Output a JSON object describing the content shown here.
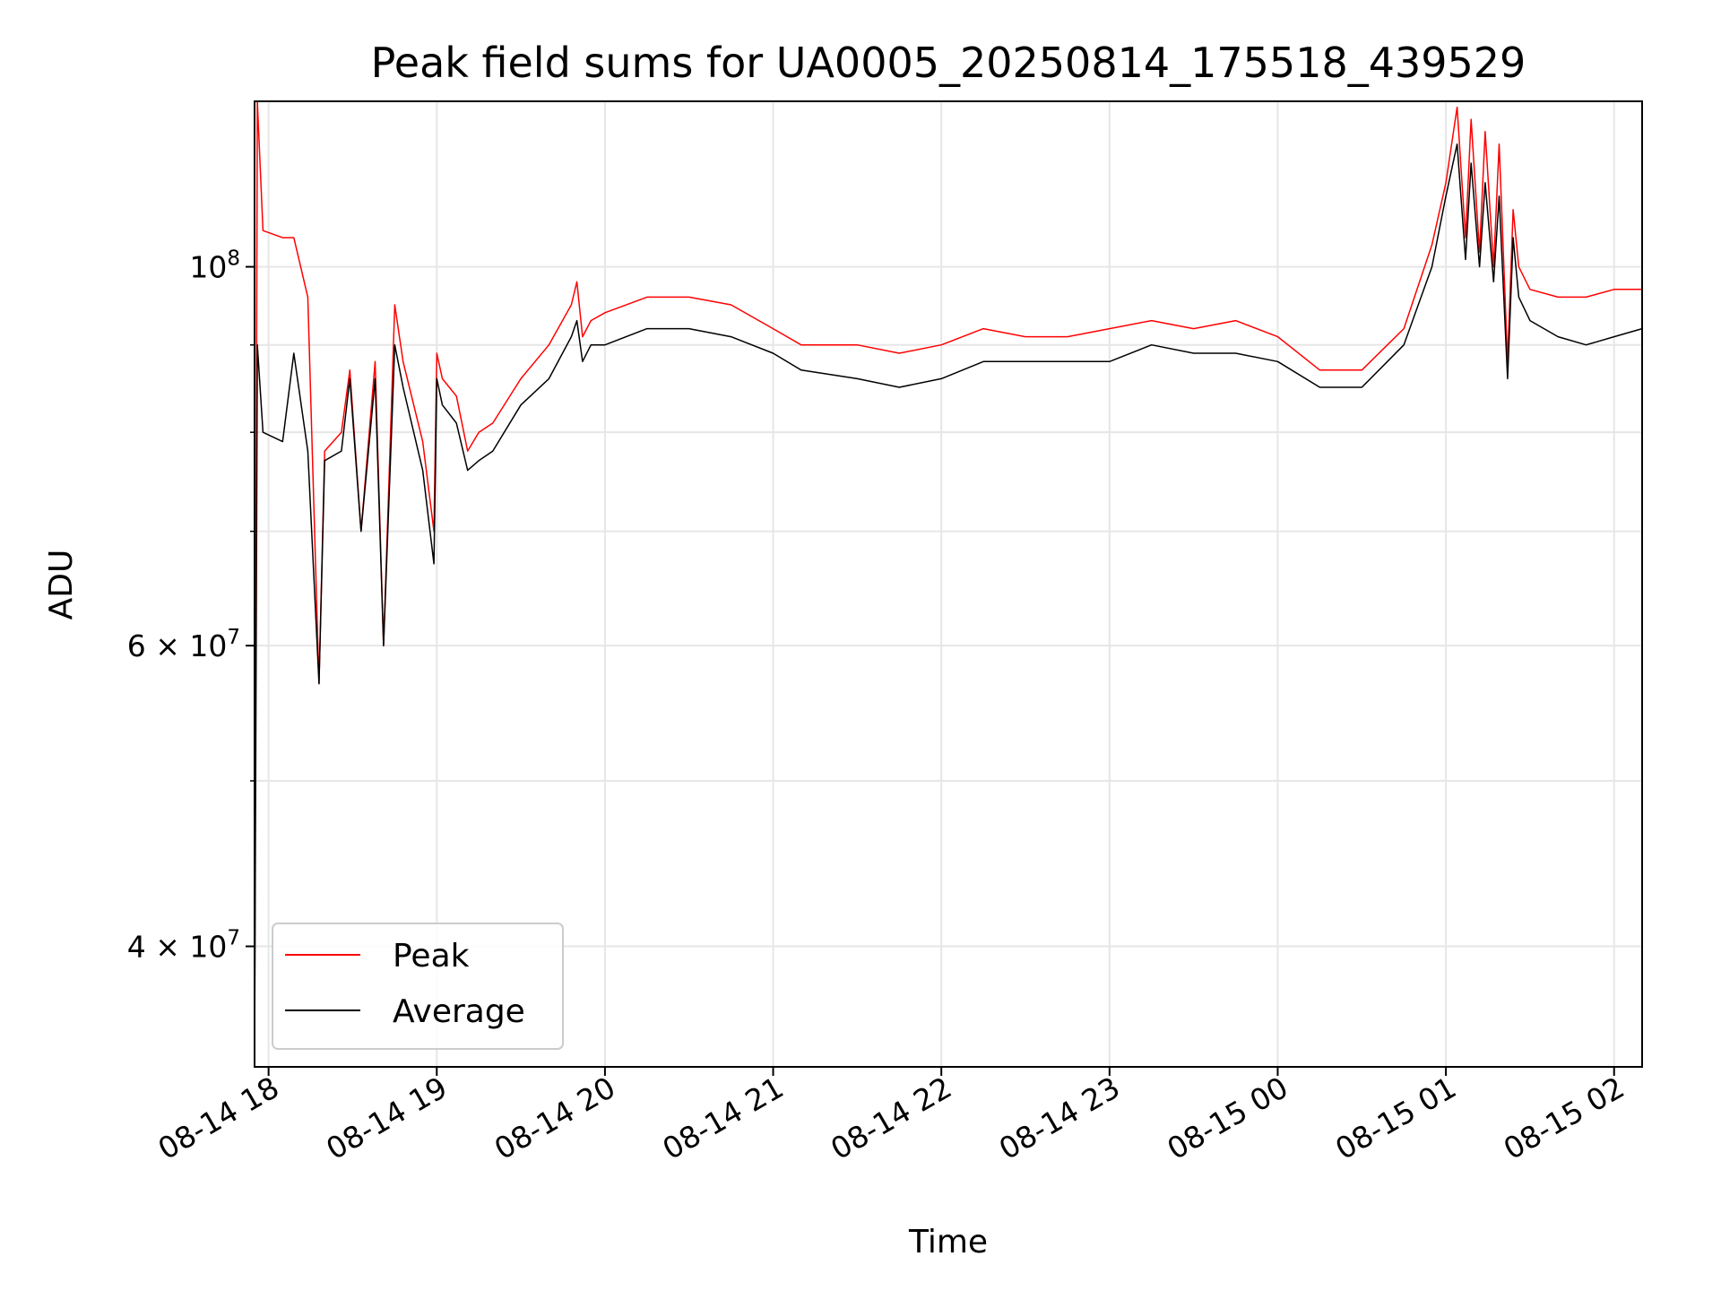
{
  "chart_data": {
    "type": "line",
    "title": "Peak field sums for UA0005_20250814_175518_439529",
    "xlabel": "Time",
    "ylabel": "ADU",
    "yscale": "log",
    "grid": true,
    "legend_placement": "lower-left",
    "xlim": [
      "2025-08-14 17:55",
      "2025-08-15 02:10"
    ],
    "ylim": [
      34000000,
      125000000
    ],
    "x_ticks": [
      {
        "value": "2025-08-14 18:00",
        "label": "08-14 18"
      },
      {
        "value": "2025-08-14 19:00",
        "label": "08-14 19"
      },
      {
        "value": "2025-08-14 20:00",
        "label": "08-14 20"
      },
      {
        "value": "2025-08-14 21:00",
        "label": "08-14 21"
      },
      {
        "value": "2025-08-14 22:00",
        "label": "08-14 22"
      },
      {
        "value": "2025-08-14 23:00",
        "label": "08-14 23"
      },
      {
        "value": "2025-08-15 00:00",
        "label": "08-15 00"
      },
      {
        "value": "2025-08-15 01:00",
        "label": "08-15 01"
      },
      {
        "value": "2025-08-15 02:00",
        "label": "08-15 02"
      }
    ],
    "y_ticks_major": [
      {
        "value": 40000000,
        "mantissa": "4",
        "base": "10",
        "exponent": "7",
        "times": "×"
      },
      {
        "value": 60000000,
        "mantissa": "6",
        "base": "10",
        "exponent": "7",
        "times": "×"
      },
      {
        "value": 100000000,
        "mantissa": "",
        "base": "10",
        "exponent": "8",
        "times": ""
      }
    ],
    "y_ticks_minor": [
      50000000,
      70000000,
      80000000,
      90000000
    ],
    "series": [
      {
        "name": "Peak",
        "color": "#ff0000",
        "x": [
          "2025-08-14 17:55",
          "2025-08-14 17:56",
          "2025-08-14 17:58",
          "2025-08-14 18:05",
          "2025-08-14 18:09",
          "2025-08-14 18:14",
          "2025-08-14 18:18",
          "2025-08-14 18:20",
          "2025-08-14 18:26",
          "2025-08-14 18:29",
          "2025-08-14 18:33",
          "2025-08-14 18:38",
          "2025-08-14 18:41",
          "2025-08-14 18:45",
          "2025-08-14 18:48",
          "2025-08-14 18:55",
          "2025-08-14 18:59",
          "2025-08-14 19:00",
          "2025-08-14 19:02",
          "2025-08-14 19:07",
          "2025-08-14 19:11",
          "2025-08-14 19:15",
          "2025-08-14 19:20",
          "2025-08-14 19:30",
          "2025-08-14 19:40",
          "2025-08-14 19:48",
          "2025-08-14 19:50",
          "2025-08-14 19:52",
          "2025-08-14 19:55",
          "2025-08-14 20:00",
          "2025-08-14 20:15",
          "2025-08-14 20:30",
          "2025-08-14 20:45",
          "2025-08-14 21:00",
          "2025-08-14 21:10",
          "2025-08-14 21:30",
          "2025-08-14 21:45",
          "2025-08-14 22:00",
          "2025-08-14 22:15",
          "2025-08-14 22:30",
          "2025-08-14 22:45",
          "2025-08-14 23:00",
          "2025-08-14 23:15",
          "2025-08-14 23:30",
          "2025-08-14 23:45",
          "2025-08-15 00:00",
          "2025-08-15 00:15",
          "2025-08-15 00:30",
          "2025-08-15 00:45",
          "2025-08-15 00:55",
          "2025-08-15 01:00",
          "2025-08-15 01:04",
          "2025-08-15 01:07",
          "2025-08-15 01:09",
          "2025-08-15 01:12",
          "2025-08-15 01:14",
          "2025-08-15 01:17",
          "2025-08-15 01:19",
          "2025-08-15 01:22",
          "2025-08-15 01:24",
          "2025-08-15 01:26",
          "2025-08-15 01:30",
          "2025-08-15 01:40",
          "2025-08-15 01:50",
          "2025-08-15 02:00",
          "2025-08-15 02:10"
        ],
        "y": [
          34000000,
          125000000,
          105000000,
          104000000,
          104000000,
          96000000,
          57000000,
          78000000,
          80000000,
          87000000,
          70000000,
          88000000,
          60000000,
          95000000,
          88000000,
          79000000,
          70000000,
          89000000,
          86000000,
          84000000,
          78000000,
          80000000,
          81000000,
          86000000,
          90000000,
          95000000,
          98000000,
          91000000,
          93000000,
          94000000,
          96000000,
          96000000,
          95000000,
          92000000,
          90000000,
          90000000,
          89000000,
          90000000,
          92000000,
          91000000,
          91000000,
          92000000,
          93000000,
          92000000,
          93000000,
          91000000,
          87000000,
          87000000,
          92000000,
          103000000,
          112000000,
          124000000,
          104000000,
          122000000,
          102000000,
          120000000,
          100000000,
          118000000,
          88000000,
          108000000,
          100000000,
          97000000,
          96000000,
          96000000,
          97000000,
          97000000
        ]
      },
      {
        "name": "Average",
        "color": "#000000",
        "x": [
          "2025-08-14 17:55",
          "2025-08-14 17:56",
          "2025-08-14 17:58",
          "2025-08-14 18:05",
          "2025-08-14 18:09",
          "2025-08-14 18:14",
          "2025-08-14 18:18",
          "2025-08-14 18:20",
          "2025-08-14 18:26",
          "2025-08-14 18:29",
          "2025-08-14 18:33",
          "2025-08-14 18:38",
          "2025-08-14 18:41",
          "2025-08-14 18:45",
          "2025-08-14 18:48",
          "2025-08-14 18:55",
          "2025-08-14 18:59",
          "2025-08-14 19:00",
          "2025-08-14 19:02",
          "2025-08-14 19:07",
          "2025-08-14 19:11",
          "2025-08-14 19:15",
          "2025-08-14 19:20",
          "2025-08-14 19:30",
          "2025-08-14 19:40",
          "2025-08-14 19:48",
          "2025-08-14 19:50",
          "2025-08-14 19:52",
          "2025-08-14 19:55",
          "2025-08-14 20:00",
          "2025-08-14 20:15",
          "2025-08-14 20:30",
          "2025-08-14 20:45",
          "2025-08-14 21:00",
          "2025-08-14 21:10",
          "2025-08-14 21:30",
          "2025-08-14 21:45",
          "2025-08-14 22:00",
          "2025-08-14 22:15",
          "2025-08-14 22:30",
          "2025-08-14 22:45",
          "2025-08-14 23:00",
          "2025-08-14 23:15",
          "2025-08-14 23:30",
          "2025-08-14 23:45",
          "2025-08-15 00:00",
          "2025-08-15 00:15",
          "2025-08-15 00:30",
          "2025-08-15 00:45",
          "2025-08-15 00:55",
          "2025-08-15 01:00",
          "2025-08-15 01:04",
          "2025-08-15 01:07",
          "2025-08-15 01:09",
          "2025-08-15 01:12",
          "2025-08-15 01:14",
          "2025-08-15 01:17",
          "2025-08-15 01:19",
          "2025-08-15 01:22",
          "2025-08-15 01:24",
          "2025-08-15 01:26",
          "2025-08-15 01:30",
          "2025-08-15 01:40",
          "2025-08-15 01:50",
          "2025-08-15 02:00",
          "2025-08-15 02:10"
        ],
        "y": [
          34000000,
          90000000,
          80000000,
          79000000,
          89000000,
          78000000,
          57000000,
          77000000,
          78000000,
          86000000,
          70000000,
          86000000,
          60000000,
          90000000,
          85000000,
          76000000,
          67000000,
          86000000,
          83000000,
          81000000,
          76000000,
          77000000,
          78000000,
          83000000,
          86000000,
          91000000,
          93000000,
          88000000,
          90000000,
          90000000,
          92000000,
          92000000,
          91000000,
          89000000,
          87000000,
          86000000,
          85000000,
          86000000,
          88000000,
          88000000,
          88000000,
          88000000,
          90000000,
          89000000,
          89000000,
          88000000,
          85000000,
          85000000,
          90000000,
          100000000,
          110000000,
          118000000,
          101000000,
          115000000,
          100000000,
          112000000,
          98000000,
          110000000,
          86000000,
          104000000,
          96000000,
          93000000,
          91000000,
          90000000,
          91000000,
          92000000
        ]
      }
    ]
  }
}
